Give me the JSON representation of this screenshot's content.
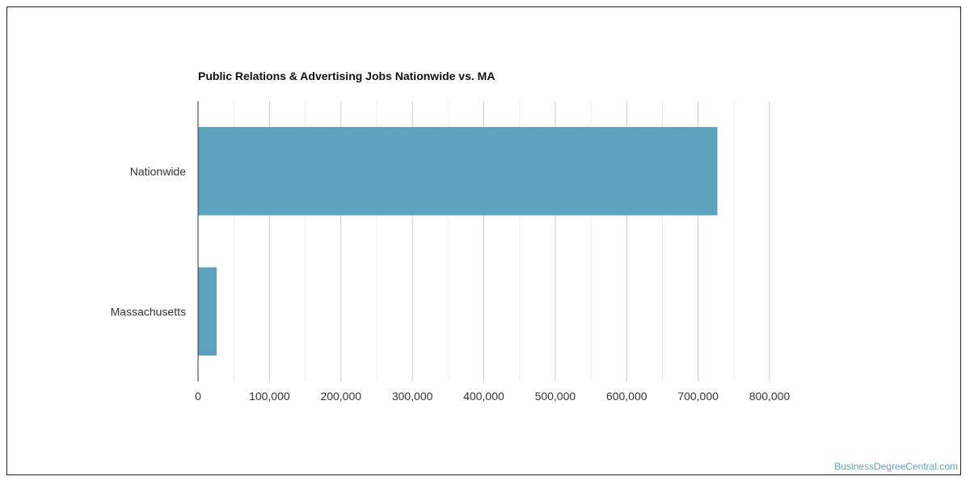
{
  "chart_data": {
    "type": "bar",
    "orientation": "horizontal",
    "title": "Public Relations & Advertising Jobs Nationwide vs. MA",
    "xlabel": "",
    "ylabel": "",
    "categories": [
      "Nationwide",
      "Massachusetts"
    ],
    "values": [
      727000,
      26000
    ],
    "xlim": [
      0,
      800000
    ],
    "xticks": [
      0,
      100000,
      200000,
      300000,
      400000,
      500000,
      600000,
      700000,
      800000
    ],
    "xtick_labels": [
      "0",
      "100,000",
      "200,000",
      "300,000",
      "400,000",
      "500,000",
      "600,000",
      "700,000",
      "800,000"
    ],
    "grid": true,
    "legend": "none",
    "bar_color": "#5ea3be"
  },
  "footer": {
    "credit": "BusinessDegreeCentral.com"
  }
}
